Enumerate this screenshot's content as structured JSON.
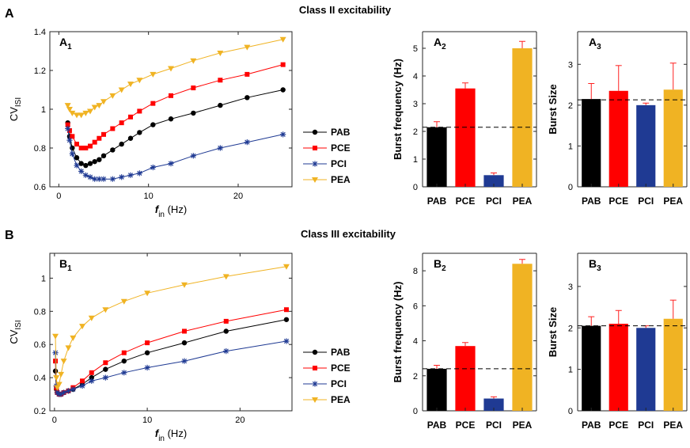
{
  "figure": {
    "panel_a_letter": "A",
    "panel_b_letter": "B",
    "panel_a_title": "Class II excitability",
    "panel_b_title": "Class III excitability"
  },
  "colors": {
    "PAB": "#000000",
    "PCE": "#ff0000",
    "PCI": "#1f3a93",
    "PEA": "#f0b323"
  },
  "chart_data": [
    {
      "id": "A1",
      "type": "line",
      "label": "A",
      "label_sub": "1",
      "xlabel": "f",
      "xlabel_sub": "in",
      "xlabel_unit": " (Hz)",
      "ylabel": "CV",
      "ylabel_sub": "ISI",
      "xlim": [
        -1,
        26
      ],
      "ylim": [
        0.6,
        1.4
      ],
      "xticks": [
        0,
        10,
        20
      ],
      "yticks": [
        0.6,
        0.8,
        1,
        1.2,
        1.4
      ],
      "yticklabels": [
        "0.6",
        "0.8",
        "1",
        "1.2",
        "1.4"
      ],
      "legend": [
        "PAB",
        "PCE",
        "PCI",
        "PEA"
      ],
      "series": [
        {
          "name": "PAB",
          "marker": "circle",
          "x": [
            1,
            1.2,
            1.5,
            2,
            2.5,
            3,
            3.5,
            4,
            4.5,
            5,
            6,
            7,
            8,
            9,
            10.5,
            12.5,
            15,
            18,
            21,
            25
          ],
          "y": [
            0.93,
            0.86,
            0.8,
            0.75,
            0.72,
            0.71,
            0.72,
            0.73,
            0.74,
            0.76,
            0.79,
            0.82,
            0.85,
            0.88,
            0.92,
            0.95,
            0.98,
            1.02,
            1.06,
            1.1
          ]
        },
        {
          "name": "PCE",
          "marker": "square",
          "x": [
            1,
            1.2,
            1.5,
            2,
            2.5,
            3,
            3.5,
            4,
            4.5,
            5,
            6,
            7,
            8,
            9,
            10.5,
            12.5,
            15,
            18,
            21,
            25
          ],
          "y": [
            0.92,
            0.89,
            0.86,
            0.82,
            0.8,
            0.8,
            0.81,
            0.83,
            0.85,
            0.87,
            0.9,
            0.93,
            0.96,
            0.99,
            1.03,
            1.07,
            1.11,
            1.15,
            1.18,
            1.23
          ]
        },
        {
          "name": "PCI",
          "marker": "star",
          "x": [
            1,
            1.2,
            1.5,
            2,
            2.5,
            3,
            3.5,
            4,
            4.5,
            5,
            6,
            7,
            8,
            9,
            10.5,
            12.5,
            15,
            18,
            21,
            25
          ],
          "y": [
            0.9,
            0.84,
            0.77,
            0.71,
            0.68,
            0.66,
            0.65,
            0.64,
            0.64,
            0.64,
            0.64,
            0.65,
            0.66,
            0.67,
            0.7,
            0.72,
            0.76,
            0.8,
            0.83,
            0.87
          ]
        },
        {
          "name": "PEA",
          "marker": "triangle",
          "x": [
            1,
            1.2,
            1.5,
            2,
            2.5,
            3,
            3.5,
            4,
            4.5,
            5,
            6,
            7,
            8,
            9,
            10.5,
            12.5,
            15,
            18,
            21,
            25
          ],
          "y": [
            1.02,
            1.0,
            0.98,
            0.97,
            0.97,
            0.98,
            0.99,
            1.01,
            1.02,
            1.04,
            1.07,
            1.1,
            1.13,
            1.15,
            1.18,
            1.21,
            1.25,
            1.29,
            1.32,
            1.36
          ]
        }
      ]
    },
    {
      "id": "A2",
      "type": "bar",
      "label": "A",
      "label_sub": "2",
      "ylabel": "Burst frequency (Hz)",
      "categories": [
        "PAB",
        "PCE",
        "PCI",
        "PEA"
      ],
      "values": [
        2.15,
        3.55,
        0.42,
        5.0
      ],
      "errors": [
        0.2,
        0.2,
        0.08,
        0.25
      ],
      "ylim": [
        0,
        5.6
      ],
      "yticks": [
        0,
        1,
        2,
        3,
        4,
        5
      ],
      "yticklabels": [
        "0",
        "1",
        "2",
        "3",
        "4",
        "5"
      ],
      "reference_line": 2.15
    },
    {
      "id": "A3",
      "type": "bar",
      "label": "A",
      "label_sub": "3",
      "ylabel": "Burst Size",
      "categories": [
        "PAB",
        "PCE",
        "PCI",
        "PEA"
      ],
      "values": [
        2.15,
        2.35,
        2.0,
        2.38
      ],
      "errors": [
        0.38,
        0.62,
        0.05,
        0.65
      ],
      "ylim": [
        0,
        3.8
      ],
      "yticks": [
        0,
        1,
        2,
        3
      ],
      "yticklabels": [
        "0",
        "1",
        "2",
        "3"
      ],
      "reference_line": 2.13
    },
    {
      "id": "B1",
      "type": "line",
      "label": "B",
      "label_sub": "1",
      "xlabel": "f",
      "xlabel_sub": "in",
      "xlabel_unit": " (Hz)",
      "ylabel": "CV",
      "ylabel_sub": "ISI",
      "xlim": [
        -0.5,
        25.6
      ],
      "ylim": [
        0.2,
        1.15
      ],
      "xticks": [
        0,
        10,
        20
      ],
      "yticks": [
        0.2,
        0.4,
        0.6,
        0.8,
        1
      ],
      "yticklabels": [
        "0.2",
        "0.4",
        "0.6",
        "0.8",
        "1"
      ],
      "legend": [
        "PAB",
        "PCE",
        "PCI",
        "PEA"
      ],
      "series": [
        {
          "name": "PAB",
          "marker": "circle",
          "x": [
            0.1,
            0.2,
            0.3,
            0.5,
            0.7,
            1.0,
            1.5,
            2,
            3,
            4,
            5.5,
            7.5,
            10,
            14,
            18.5,
            25
          ],
          "y": [
            0.44,
            0.33,
            0.31,
            0.3,
            0.3,
            0.31,
            0.32,
            0.33,
            0.36,
            0.4,
            0.45,
            0.5,
            0.55,
            0.61,
            0.68,
            0.75
          ]
        },
        {
          "name": "PCE",
          "marker": "square",
          "x": [
            0.1,
            0.2,
            0.3,
            0.5,
            0.7,
            1.0,
            1.5,
            2,
            3,
            4,
            5.5,
            7.5,
            10,
            14,
            18.5,
            25
          ],
          "y": [
            0.5,
            0.34,
            0.31,
            0.3,
            0.3,
            0.31,
            0.32,
            0.34,
            0.38,
            0.43,
            0.49,
            0.55,
            0.61,
            0.68,
            0.74,
            0.81
          ]
        },
        {
          "name": "PCI",
          "marker": "star",
          "x": [
            0.1,
            0.2,
            0.3,
            0.5,
            0.7,
            1.0,
            1.5,
            2,
            3,
            4,
            5.5,
            7.5,
            10,
            14,
            18.5,
            25
          ],
          "y": [
            0.55,
            0.35,
            0.31,
            0.3,
            0.3,
            0.31,
            0.32,
            0.33,
            0.35,
            0.38,
            0.4,
            0.43,
            0.46,
            0.5,
            0.56,
            0.62
          ]
        },
        {
          "name": "PEA",
          "marker": "triangle",
          "x": [
            0.1,
            0.2,
            0.3,
            0.5,
            0.7,
            1.0,
            1.5,
            2,
            3,
            4,
            5.5,
            7.5,
            10,
            14,
            18.5,
            25
          ],
          "y": [
            0.65,
            0.4,
            0.34,
            0.36,
            0.42,
            0.5,
            0.58,
            0.64,
            0.71,
            0.76,
            0.81,
            0.86,
            0.91,
            0.96,
            1.01,
            1.07
          ]
        }
      ]
    },
    {
      "id": "B2",
      "type": "bar",
      "label": "B",
      "label_sub": "2",
      "ylabel": "Burst frequency (Hz)",
      "categories": [
        "PAB",
        "PCE",
        "PCI",
        "PEA"
      ],
      "values": [
        2.4,
        3.7,
        0.7,
        8.4
      ],
      "errors": [
        0.2,
        0.2,
        0.1,
        0.25
      ],
      "ylim": [
        0,
        9
      ],
      "yticks": [
        0,
        2,
        4,
        6,
        8
      ],
      "yticklabels": [
        "0",
        "2",
        "4",
        "6",
        "8"
      ],
      "reference_line": 2.4
    },
    {
      "id": "B3",
      "type": "bar",
      "label": "B",
      "label_sub": "3",
      "ylabel": "Burst Size",
      "categories": [
        "PAB",
        "PCE",
        "PCI",
        "PEA"
      ],
      "values": [
        2.05,
        2.1,
        2.0,
        2.22
      ],
      "errors": [
        0.22,
        0.32,
        0.05,
        0.45
      ],
      "ylim": [
        0,
        3.8
      ],
      "yticks": [
        0,
        1,
        2,
        3
      ],
      "yticklabels": [
        "0",
        "1",
        "2",
        "3"
      ],
      "reference_line": 2.05
    }
  ]
}
